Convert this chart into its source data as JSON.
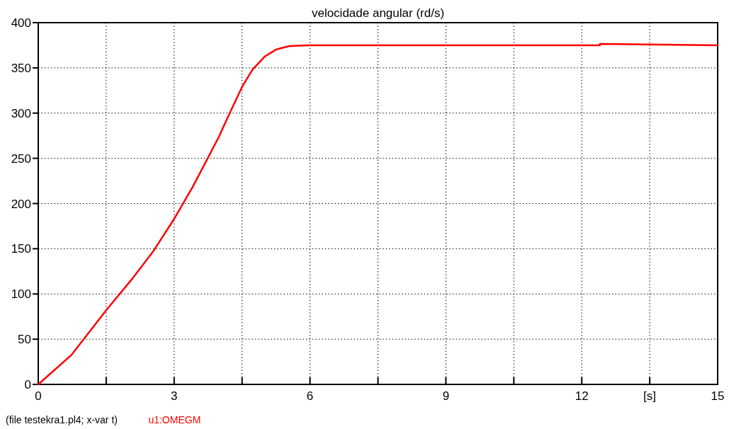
{
  "chart_data": {
    "type": "line",
    "title": "velocidade angular (rd/s)",
    "xlabel": "[s]",
    "annotations": [
      "(file testekra1.pl4; x-var t)"
    ],
    "xlim": [
      0,
      15
    ],
    "ylim": [
      0,
      400
    ],
    "xticks": [
      0,
      {
        "value": 1.5,
        "label": null
      },
      3,
      {
        "value": 4.5,
        "label": null
      },
      6,
      {
        "value": 7.5,
        "label": null
      },
      9,
      {
        "value": 10.5,
        "label": null
      },
      12,
      {
        "value": 13.5,
        "label": null
      },
      15
    ],
    "yticks": [
      0,
      50,
      100,
      150,
      200,
      250,
      300,
      350,
      400
    ],
    "grid": true,
    "legend": "bottom left",
    "line_style": "solid",
    "series": [
      {
        "name": "u1:OMEGM",
        "color": "#ff0000",
        "x": [
          0,
          0.735,
          1.5,
          2.07,
          2.55,
          3,
          3.4,
          3.72,
          3.98,
          4.2,
          4.5,
          4.73,
          5,
          5.26,
          5.53,
          5.74,
          6,
          9,
          12.4,
          12.4,
          15
        ],
        "values": [
          0,
          32.7,
          82,
          116.5,
          148,
          183,
          217.5,
          248,
          273,
          297,
          329,
          348,
          362.5,
          370.5,
          374,
          374.5,
          375,
          375,
          375,
          376.5,
          375
        ]
      }
    ]
  }
}
